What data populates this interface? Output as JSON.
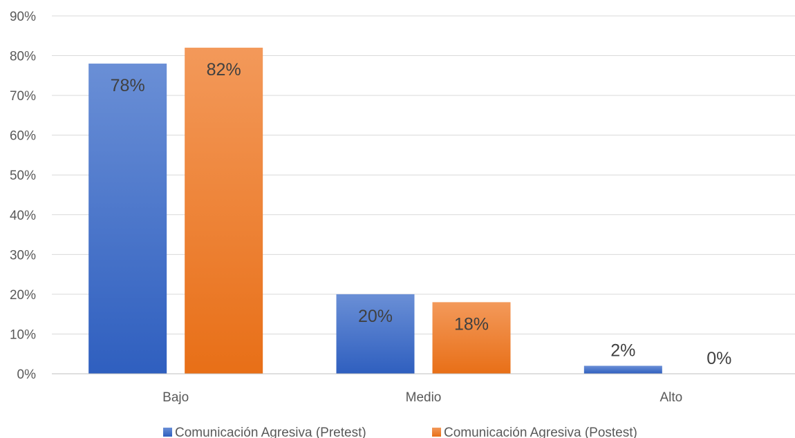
{
  "chart_data": {
    "type": "bar",
    "categories": [
      "Bajo",
      "Medio",
      "Alto"
    ],
    "series": [
      {
        "name": "Comunicación Agresiva (Pretest)",
        "values": [
          78,
          20,
          2
        ],
        "labels": [
          "78%",
          "20%",
          "2%"
        ],
        "color_top": "#6a8fd6",
        "color_bottom": "#2f5fbf"
      },
      {
        "name": "Comunicación Agresiva (Postest)",
        "values": [
          82,
          18,
          0
        ],
        "labels": [
          "82%",
          "18%",
          "0%"
        ],
        "color_top": "#f3995a",
        "color_bottom": "#e86f17"
      }
    ],
    "ylim": [
      0,
      90
    ],
    "yticks": [
      0,
      10,
      20,
      30,
      40,
      50,
      60,
      70,
      80,
      90
    ],
    "ytick_labels": [
      "0%",
      "10%",
      "20%",
      "30%",
      "40%",
      "50%",
      "60%",
      "70%",
      "80%",
      "90%"
    ],
    "title": "",
    "xlabel": "",
    "ylabel": "",
    "grid": true,
    "legend_position": "bottom"
  }
}
